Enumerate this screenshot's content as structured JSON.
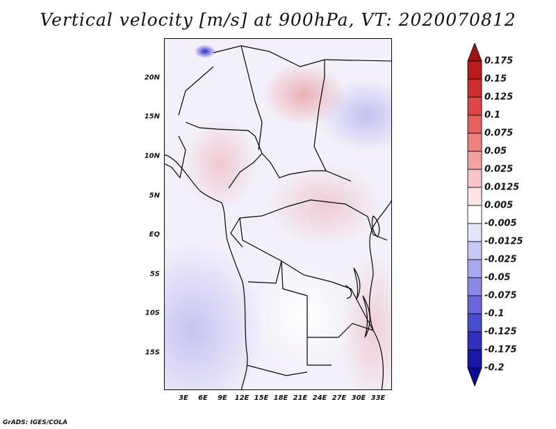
{
  "title": "Vertical velocity [m/s] at 900hPa, VT: 2020070812",
  "lat_ticks": [
    "20N",
    "15N",
    "10N",
    "5N",
    "EQ",
    "5S",
    "10S",
    "15S"
  ],
  "lon_ticks": [
    "3E",
    "6E",
    "9E",
    "12E",
    "15E",
    "18E",
    "21E",
    "24E",
    "27E",
    "30E",
    "33E"
  ],
  "colorbar": {
    "labels": [
      "0.175",
      "0.15",
      "0.125",
      "0.1",
      "0.075",
      "0.05",
      "0.025",
      "0.0125",
      "0.005",
      "-0.005",
      "-0.0125",
      "-0.025",
      "-0.05",
      "-0.075",
      "-0.1",
      "-0.125",
      "-0.175",
      "-0.2"
    ],
    "colors": [
      "#a01212",
      "#b81c1c",
      "#cc2e2e",
      "#dc4646",
      "#e66060",
      "#ee8080",
      "#f4a2a2",
      "#f8c6c6",
      "#fbe4e4",
      "#ffffff",
      "#e6e6fa",
      "#c8c8f4",
      "#a8a8ee",
      "#8888e6",
      "#6868dc",
      "#4c4cd0",
      "#3030c0",
      "#1818a8",
      "#0c0c96"
    ]
  },
  "footer": "GrADS: IGES/COLA"
}
